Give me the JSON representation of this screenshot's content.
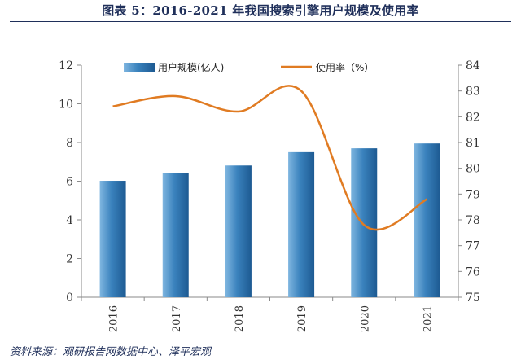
{
  "header": {
    "title": "图表 5：2016-2021 年我国搜索引擎用户规模及使用率"
  },
  "footer": {
    "source": "资料来源：观研报告网数据中心、泽平宏观"
  },
  "colors": {
    "bar": "#3a82bd",
    "line": "#e07b22",
    "axis": "#8a8a8a",
    "title": "#1f2f5a"
  },
  "chart_data": {
    "type": "bar+line",
    "title": "2016-2021 年我国搜索引擎用户规模及使用率",
    "categories": [
      "2016",
      "2017",
      "2018",
      "2019",
      "2020",
      "2021"
    ],
    "series": [
      {
        "name": "用户规模(亿人)",
        "type": "bar",
        "axis": "left",
        "values": [
          6.02,
          6.4,
          6.81,
          7.5,
          7.7,
          7.95
        ]
      },
      {
        "name": "使用率（%）",
        "type": "line",
        "axis": "right",
        "values": [
          82.4,
          82.8,
          82.2,
          83.0,
          77.8,
          78.8
        ]
      }
    ],
    "left_axis": {
      "ylim": [
        0,
        12
      ],
      "ticks": [
        "0",
        "2",
        "4",
        "6",
        "8",
        "10",
        "12"
      ]
    },
    "right_axis": {
      "ylim": [
        75,
        84
      ],
      "ticks": [
        "75",
        "76",
        "77",
        "78",
        "79",
        "80",
        "81",
        "82",
        "83",
        "84"
      ]
    },
    "legend": [
      {
        "label": "用户规模(亿人)",
        "kind": "bar"
      },
      {
        "label": "使用率（%）",
        "kind": "line"
      }
    ],
    "legend_position": "top"
  }
}
